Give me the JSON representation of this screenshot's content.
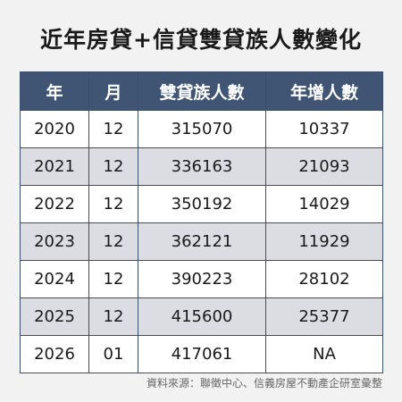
{
  "title": "近年房貸+信貸雙貸族人數變化",
  "headers": {
    "year": "年",
    "month": "月",
    "count": "雙貸族人數",
    "increase": "年增人數"
  },
  "rows": [
    {
      "year": "2020",
      "month": "12",
      "count": "315070",
      "increase": "10337"
    },
    {
      "year": "2021",
      "month": "12",
      "count": "336163",
      "increase": "21093"
    },
    {
      "year": "2022",
      "month": "12",
      "count": "350192",
      "increase": "14029"
    },
    {
      "year": "2023",
      "month": "12",
      "count": "362121",
      "increase": "11929"
    },
    {
      "year": "2024",
      "month": "12",
      "count": "390223",
      "increase": "28102"
    },
    {
      "year": "2025",
      "month": "12",
      "count": "415600",
      "increase": "25377"
    },
    {
      "year": "2026",
      "month": "01",
      "count": "417061",
      "increase": "NA"
    }
  ],
  "source": "資料來源：聯徵中心、信義房屋不動產企研室彙整",
  "colors": {
    "header_bg": "#3f5573",
    "stripe": "#dcdde3",
    "page_bg": "#f2f2f2"
  }
}
